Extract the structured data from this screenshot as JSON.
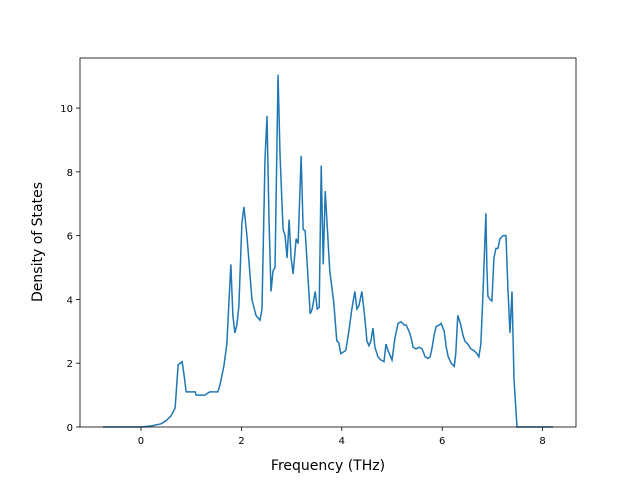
{
  "chart_data": {
    "type": "line",
    "xlabel": "Frequency (THz)",
    "ylabel": "Density of States",
    "xlim": [
      -1.215,
      8.665
    ],
    "ylim": [
      0,
      11.57
    ],
    "xticks": [
      0,
      2,
      4,
      6,
      8
    ],
    "yticks": [
      0,
      2,
      4,
      6,
      8,
      10
    ],
    "series": [
      {
        "color": "#1f77b4",
        "x": [
          -0.76,
          0,
          0.2,
          0.4,
          0.5,
          0.6,
          0.68,
          0.74,
          0.82,
          0.86,
          0.9,
          1.08,
          1.1,
          1.27,
          1.37,
          1.53,
          1.57,
          1.65,
          1.71,
          1.79,
          1.83,
          1.87,
          1.91,
          1.95,
          2.01,
          2.05,
          2.11,
          2.17,
          2.21,
          2.29,
          2.37,
          2.41,
          2.47,
          2.51,
          2.55,
          2.59,
          2.63,
          2.67,
          2.73,
          2.77,
          2.83,
          2.87,
          2.91,
          2.95,
          2.99,
          3.03,
          3.09,
          3.13,
          3.19,
          3.23,
          3.27,
          3.33,
          3.37,
          3.41,
          3.47,
          3.51,
          3.55,
          3.59,
          3.63,
          3.67,
          3.76,
          3.84,
          3.9,
          3.94,
          3.98,
          4.08,
          4.14,
          4.2,
          4.26,
          4.3,
          4.34,
          4.4,
          4.46,
          4.5,
          4.54,
          4.58,
          4.62,
          4.66,
          4.72,
          4.78,
          4.84,
          4.88,
          4.92,
          5.0,
          5.06,
          5.12,
          5.18,
          5.24,
          5.28,
          5.34,
          5.38,
          5.42,
          5.48,
          5.54,
          5.6,
          5.66,
          5.72,
          5.76,
          5.8,
          5.84,
          5.88,
          5.94,
          5.98,
          6.04,
          6.08,
          6.12,
          6.18,
          6.24,
          6.27,
          6.31,
          6.37,
          6.41,
          6.45,
          6.51,
          6.57,
          6.63,
          6.69,
          6.73,
          6.77,
          6.81,
          6.87,
          6.89,
          6.91,
          6.95,
          6.99,
          7.03,
          7.07,
          7.11,
          7.15,
          7.21,
          7.27,
          7.31,
          7.35,
          7.39,
          7.43,
          7.49,
          8.21
        ],
        "values": [
          0,
          0,
          0.03,
          0.1,
          0.2,
          0.35,
          0.6,
          1.95,
          2.05,
          1.6,
          1.1,
          1.1,
          1.0,
          1.0,
          1.1,
          1.1,
          1.3,
          1.9,
          2.6,
          5.1,
          3.5,
          2.95,
          3.2,
          3.8,
          6.4,
          6.9,
          6.0,
          4.8,
          4.0,
          3.5,
          3.35,
          3.7,
          8.4,
          9.75,
          6.5,
          4.25,
          4.9,
          5.0,
          11.05,
          8.5,
          6.2,
          6.0,
          5.3,
          6.5,
          5.3,
          4.8,
          5.9,
          5.75,
          8.5,
          6.2,
          6.15,
          4.6,
          3.55,
          3.7,
          4.25,
          3.7,
          3.75,
          8.2,
          5.1,
          7.4,
          4.9,
          3.9,
          2.7,
          2.65,
          2.3,
          2.4,
          3.0,
          3.7,
          4.25,
          3.7,
          3.8,
          4.25,
          3.4,
          2.7,
          2.55,
          2.7,
          3.1,
          2.5,
          2.2,
          2.1,
          2.05,
          2.6,
          2.4,
          2.1,
          2.8,
          3.25,
          3.3,
          3.2,
          3.2,
          3.0,
          2.8,
          2.5,
          2.45,
          2.5,
          2.45,
          2.2,
          2.15,
          2.2,
          2.5,
          2.9,
          3.15,
          3.2,
          3.25,
          3.0,
          2.5,
          2.2,
          2.0,
          1.9,
          2.3,
          3.5,
          3.2,
          2.9,
          2.7,
          2.6,
          2.45,
          2.4,
          2.3,
          2.2,
          2.6,
          4.1,
          6.7,
          5.0,
          4.1,
          4.0,
          3.95,
          5.3,
          5.6,
          5.6,
          5.9,
          6.0,
          6.0,
          4.3,
          2.95,
          4.25,
          1.5,
          0,
          0
        ]
      }
    ]
  }
}
